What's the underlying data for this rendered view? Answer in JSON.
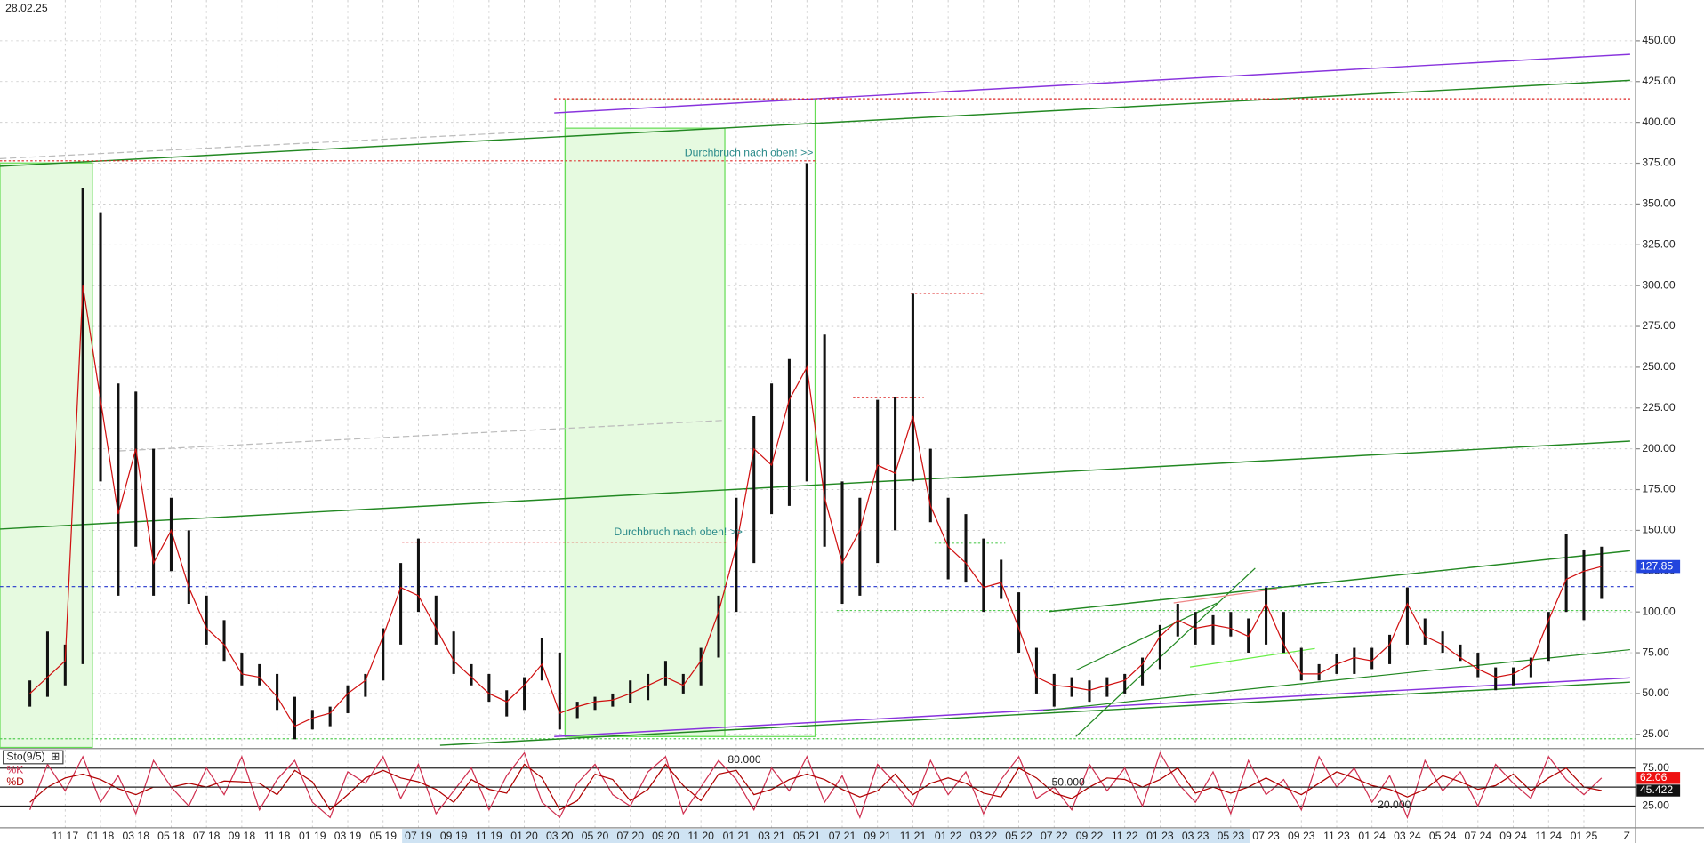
{
  "chart_data": [
    {
      "type": "candlestick",
      "date": "28.02.25",
      "scroll_label": "Z",
      "categories": [
        null,
        null,
        "11 17",
        null,
        "01 18",
        null,
        "03 18",
        null,
        "05 18",
        null,
        "07 18",
        null,
        "09 18",
        null,
        "11 18",
        null,
        "01 19",
        null,
        "03 19",
        null,
        "05 19",
        null,
        "07 19",
        null,
        "09 19",
        null,
        "11 19",
        null,
        "01 20",
        null,
        "03 20",
        null,
        "05 20",
        null,
        "07 20",
        null,
        "09 20",
        null,
        "11 20",
        null,
        "01 21",
        null,
        "03 21",
        null,
        "05 21",
        null,
        "07 21",
        null,
        "09 21",
        null,
        "11 21",
        null,
        "01 22",
        null,
        "03 22",
        null,
        "05 22",
        null,
        "07 22",
        null,
        "09 22",
        null,
        "11 22",
        null,
        "01 23",
        null,
        "03 23",
        null,
        "05 23",
        null,
        "07 23",
        null,
        "09 23",
        null,
        "11 23",
        null,
        "01 24",
        null,
        "03 24",
        null,
        "05 24",
        null,
        "07 24",
        null,
        "09 24",
        null,
        "11 24",
        null,
        "01 25",
        null
      ],
      "high": [
        58,
        88,
        80,
        360,
        345,
        240,
        235,
        200,
        170,
        150,
        110,
        95,
        75,
        68,
        62,
        48,
        40,
        42,
        55,
        62,
        90,
        130,
        145,
        110,
        88,
        68,
        62,
        52,
        60,
        84,
        75,
        45,
        48,
        50,
        58,
        62,
        70,
        62,
        78,
        110,
        170,
        220,
        240,
        255,
        375,
        270,
        180,
        170,
        230,
        232,
        295,
        200,
        170,
        160,
        145,
        132,
        112,
        78,
        62,
        60,
        58,
        60,
        62,
        72,
        92,
        105,
        100,
        98,
        100,
        96,
        115,
        100,
        78,
        68,
        74,
        78,
        78,
        86,
        115,
        96,
        88,
        80,
        75,
        66,
        66,
        72,
        100,
        148,
        138,
        140
      ],
      "low": [
        42,
        48,
        55,
        68,
        180,
        110,
        140,
        110,
        125,
        105,
        80,
        70,
        55,
        55,
        40,
        22,
        28,
        30,
        38,
        48,
        58,
        80,
        100,
        80,
        62,
        55,
        45,
        36,
        40,
        58,
        28,
        35,
        40,
        42,
        44,
        46,
        55,
        50,
        55,
        72,
        100,
        130,
        160,
        165,
        180,
        140,
        105,
        110,
        130,
        150,
        180,
        155,
        120,
        118,
        100,
        108,
        75,
        50,
        42,
        48,
        45,
        48,
        50,
        55,
        65,
        85,
        80,
        80,
        85,
        75,
        80,
        75,
        58,
        58,
        62,
        62,
        65,
        68,
        80,
        80,
        75,
        70,
        60,
        52,
        55,
        60,
        70,
        100,
        95,
        108
      ],
      "close": [
        50,
        60,
        70,
        300,
        230,
        160,
        200,
        130,
        150,
        115,
        90,
        80,
        62,
        60,
        48,
        30,
        35,
        38,
        50,
        58,
        85,
        115,
        110,
        90,
        70,
        60,
        50,
        45,
        55,
        68,
        38,
        42,
        45,
        46,
        50,
        55,
        60,
        55,
        70,
        100,
        140,
        200,
        190,
        230,
        250,
        170,
        130,
        150,
        190,
        185,
        220,
        165,
        140,
        130,
        115,
        118,
        90,
        60,
        55,
        54,
        52,
        55,
        58,
        68,
        85,
        95,
        90,
        92,
        90,
        85,
        105,
        80,
        62,
        62,
        68,
        72,
        70,
        80,
        105,
        85,
        80,
        72,
        65,
        60,
        62,
        68,
        95,
        120,
        125,
        127.85
      ],
      "candle_color": "#111111",
      "close_color": "#d01010",
      "ylim": [
        17,
        475
      ],
      "yticks": [
        {
          "value": 25,
          "label": "25.00"
        },
        {
          "value": 50,
          "label": "50.00"
        },
        {
          "value": 75,
          "label": "75.00"
        },
        {
          "value": 100,
          "label": "100.00"
        },
        {
          "value": 125,
          "label": "125.00"
        },
        {
          "value": 150,
          "label": "150.00"
        },
        {
          "value": 175,
          "label": "175.00"
        },
        {
          "value": 200,
          "label": "200.00"
        },
        {
          "value": 225,
          "label": "225.00"
        },
        {
          "value": 250,
          "label": "250.00"
        },
        {
          "value": 275,
          "label": "275.00"
        },
        {
          "value": 300,
          "label": "300.00"
        },
        {
          "value": 325,
          "label": "325.00"
        },
        {
          "value": 350,
          "label": "350.00"
        },
        {
          "value": 375,
          "label": "375.00"
        },
        {
          "value": 400,
          "label": "400.00"
        },
        {
          "value": 425,
          "label": "425.00"
        },
        {
          "value": 450,
          "label": "450.00"
        }
      ],
      "grid": true,
      "annotations": [
        "Durchbruch nach oben! >>",
        "Durchbruch nach oben! >>"
      ]
    },
    {
      "type": "line",
      "title": "Sto(9/5)",
      "ylim": [
        0,
        100
      ],
      "yticks": [
        {
          "value": 25,
          "label": "25.00"
        },
        {
          "value": 75,
          "label": "75.00"
        }
      ],
      "levels": [
        {
          "value": 80,
          "label": "80.000"
        },
        {
          "value": 50,
          "label": "50.000"
        },
        {
          "value": 20,
          "label": "20.000"
        }
      ],
      "series": [
        {
          "name": "%K",
          "color": "#d03050",
          "values": [
            20,
            80,
            45,
            90,
            30,
            65,
            15,
            85,
            50,
            25,
            75,
            40,
            90,
            20,
            60,
            85,
            30,
            10,
            70,
            55,
            90,
            35,
            80,
            15,
            45,
            75,
            20,
            65,
            95,
            30,
            10,
            55,
            80,
            40,
            25,
            70,
            90,
            15,
            50,
            85,
            60,
            20,
            75,
            45,
            90,
            30,
            65,
            10,
            80,
            55,
            25,
            85,
            40,
            70,
            15,
            60,
            90,
            35,
            50,
            20,
            80,
            45,
            75,
            25,
            95,
            55,
            30,
            70,
            15,
            85,
            40,
            60,
            20,
            90,
            50,
            75,
            30,
            65,
            10,
            85,
            45,
            70,
            25,
            80,
            55,
            35,
            90,
            60,
            40,
            62.06
          ]
        },
        {
          "name": "%D",
          "color": "#b00000",
          "values": [
            30,
            50,
            62,
            67,
            60,
            48,
            40,
            50,
            50,
            55,
            50,
            58,
            57,
            55,
            40,
            72,
            57,
            20,
            40,
            62,
            72,
            62,
            57,
            47,
            30,
            60,
            47,
            42,
            80,
            62,
            20,
            32,
            67,
            60,
            32,
            47,
            80,
            52,
            32,
            67,
            72,
            40,
            47,
            60,
            67,
            60,
            47,
            37,
            45,
            67,
            40,
            55,
            62,
            55,
            42,
            37,
            75,
            62,
            42,
            35,
            50,
            62,
            60,
            50,
            60,
            75,
            42,
            50,
            42,
            50,
            62,
            50,
            40,
            55,
            70,
            62,
            52,
            47,
            37,
            47,
            65,
            57,
            47,
            52,
            67,
            45,
            62,
            75,
            50,
            45.422
          ]
        }
      ]
    }
  ]
}
